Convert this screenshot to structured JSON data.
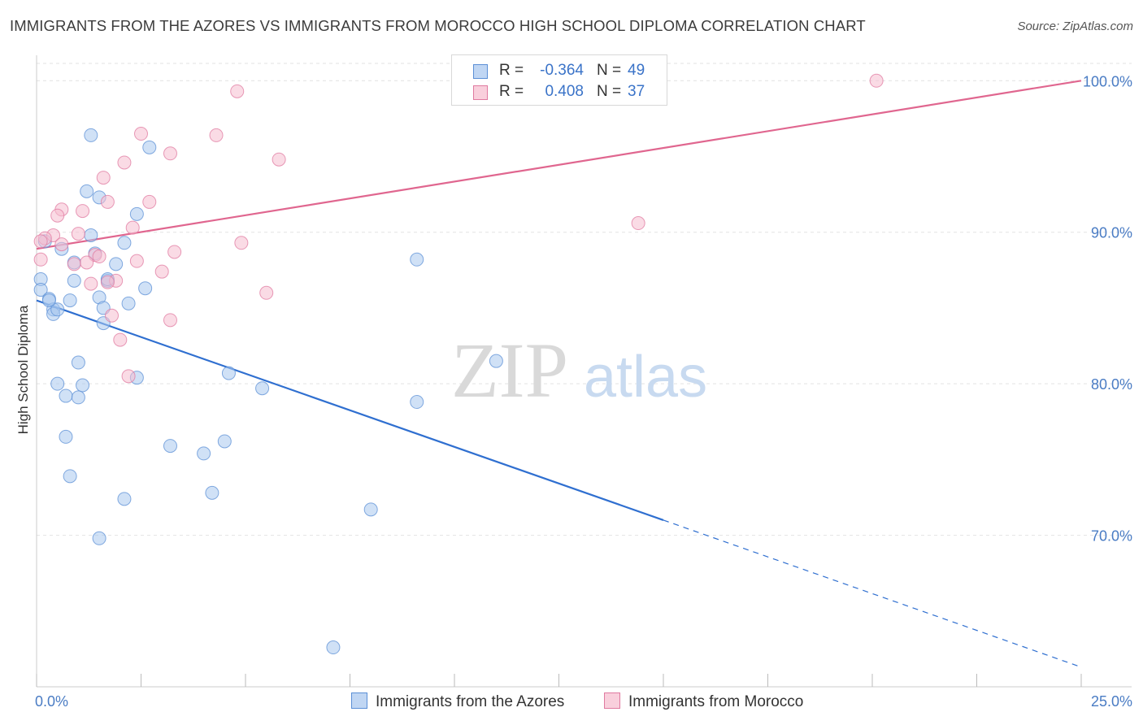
{
  "title": "IMMIGRANTS FROM THE AZORES VS IMMIGRANTS FROM MOROCCO HIGH SCHOOL DIPLOMA CORRELATION CHART",
  "source": "Source: ZipAtlas.com",
  "watermark": {
    "zip": "ZIP",
    "atlas": "atlas"
  },
  "colors": {
    "azores": "#5b8fd6",
    "azores_fill": "#aac8ee",
    "morocco": "#e07aa0",
    "morocco_fill": "#f5bdd0",
    "tick_text": "#4a7cc4"
  },
  "legend": {
    "azores": {
      "r_label": "R =",
      "r_value": "-0.364",
      "n_label": "N =",
      "n_value": "49"
    },
    "morocco": {
      "r_label": "R =",
      "r_value": "0.408",
      "n_label": "N =",
      "n_value": "37"
    }
  },
  "bottom_legend": {
    "azores": "Immigrants from the Azores",
    "morocco": "Immigrants from Morocco"
  },
  "chart_data": {
    "type": "scatter",
    "title": "IMMIGRANTS FROM THE AZORES VS IMMIGRANTS FROM MOROCCO HIGH SCHOOL DIPLOMA CORRELATION CHART",
    "xlabel": "",
    "ylabel": "High School Diploma",
    "xlim": [
      0,
      25
    ],
    "ylim": [
      60,
      102
    ],
    "x_tick_labels": {
      "min": "0.0%",
      "max": "25.0%"
    },
    "y_ticks": [
      {
        "value": 100,
        "label": "100.0%"
      },
      {
        "value": 90,
        "label": "90.0%"
      },
      {
        "value": 80,
        "label": "80.0%"
      },
      {
        "value": 70,
        "label": "70.0%"
      }
    ],
    "series": [
      {
        "name": "Immigrants from the Azores",
        "r": -0.364,
        "n": 49,
        "trend": {
          "x0": 0.0,
          "y0": 85.5,
          "x1": 15.0,
          "y1": 71.0,
          "dash_to_x": 25.0,
          "dash_to_y": 61.3
        },
        "points": [
          [
            1.3,
            96.4
          ],
          [
            2.7,
            95.6
          ],
          [
            1.2,
            92.7
          ],
          [
            1.5,
            92.3
          ],
          [
            2.4,
            91.2
          ],
          [
            1.3,
            89.8
          ],
          [
            0.2,
            89.4
          ],
          [
            0.6,
            88.9
          ],
          [
            2.1,
            89.3
          ],
          [
            1.4,
            88.6
          ],
          [
            0.9,
            88.0
          ],
          [
            1.9,
            87.9
          ],
          [
            9.1,
            88.2
          ],
          [
            0.1,
            86.9
          ],
          [
            0.9,
            86.8
          ],
          [
            1.7,
            86.8
          ],
          [
            2.6,
            86.3
          ],
          [
            0.1,
            86.2
          ],
          [
            0.3,
            85.6
          ],
          [
            0.8,
            85.5
          ],
          [
            1.5,
            85.7
          ],
          [
            2.2,
            85.3
          ],
          [
            0.4,
            84.9
          ],
          [
            1.6,
            85.0
          ],
          [
            0.4,
            84.6
          ],
          [
            1.6,
            84.0
          ],
          [
            1.0,
            81.4
          ],
          [
            11.0,
            81.5
          ],
          [
            4.6,
            80.7
          ],
          [
            2.4,
            80.4
          ],
          [
            0.5,
            80.0
          ],
          [
            1.1,
            79.9
          ],
          [
            5.4,
            79.7
          ],
          [
            0.7,
            79.2
          ],
          [
            1.0,
            79.1
          ],
          [
            9.1,
            78.8
          ],
          [
            0.7,
            76.5
          ],
          [
            3.2,
            75.9
          ],
          [
            4.0,
            75.4
          ],
          [
            4.5,
            76.2
          ],
          [
            0.8,
            73.9
          ],
          [
            2.1,
            72.4
          ],
          [
            4.2,
            72.8
          ],
          [
            8.0,
            71.7
          ],
          [
            1.5,
            69.8
          ],
          [
            7.1,
            62.6
          ],
          [
            0.5,
            84.9
          ],
          [
            0.3,
            85.5
          ],
          [
            1.7,
            86.9
          ]
        ]
      },
      {
        "name": "Immigrants from Morocco",
        "r": 0.408,
        "n": 37,
        "trend": {
          "x0": 0.0,
          "y0": 88.9,
          "x1": 25.0,
          "y1": 100.0
        },
        "points": [
          [
            20.1,
            100.0
          ],
          [
            4.8,
            99.3
          ],
          [
            2.5,
            96.5
          ],
          [
            4.3,
            96.4
          ],
          [
            3.2,
            95.2
          ],
          [
            5.8,
            94.8
          ],
          [
            2.1,
            94.6
          ],
          [
            1.6,
            93.6
          ],
          [
            2.7,
            92.0
          ],
          [
            1.7,
            92.0
          ],
          [
            0.6,
            91.5
          ],
          [
            1.1,
            91.4
          ],
          [
            0.5,
            91.1
          ],
          [
            2.3,
            90.3
          ],
          [
            14.4,
            90.6
          ],
          [
            1.0,
            89.9
          ],
          [
            0.4,
            89.8
          ],
          [
            0.2,
            89.6
          ],
          [
            0.1,
            89.4
          ],
          [
            4.9,
            89.3
          ],
          [
            0.6,
            89.2
          ],
          [
            3.3,
            88.7
          ],
          [
            1.4,
            88.5
          ],
          [
            1.5,
            88.4
          ],
          [
            2.4,
            88.1
          ],
          [
            0.9,
            87.9
          ],
          [
            1.2,
            88.0
          ],
          [
            3.0,
            87.4
          ],
          [
            1.9,
            86.8
          ],
          [
            1.7,
            86.7
          ],
          [
            1.3,
            86.6
          ],
          [
            5.5,
            86.0
          ],
          [
            1.8,
            84.5
          ],
          [
            3.2,
            84.2
          ],
          [
            2.0,
            82.9
          ],
          [
            2.2,
            80.5
          ],
          [
            0.1,
            88.2
          ]
        ]
      }
    ]
  }
}
